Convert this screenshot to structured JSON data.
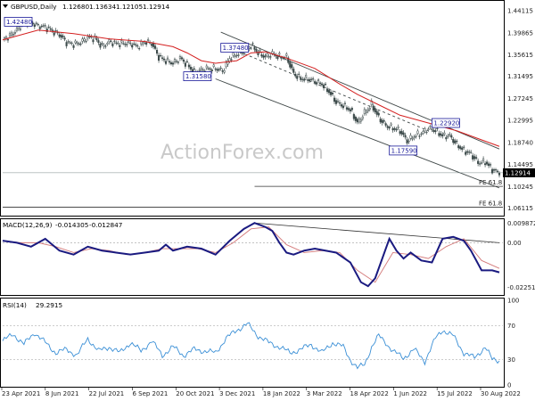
{
  "watermark": "ActionForex.com",
  "chart_data": [
    {
      "type": "candlestick",
      "title": "GBPUSD,Daily",
      "ohlc_readout": [
        "1.12680",
        "1.13634",
        "1.12105",
        "1.12914"
      ],
      "last_price": "1.12914",
      "y_ticks": [
        "1.44115",
        "1.39865",
        "1.35615",
        "1.31495",
        "1.27245",
        "1.22995",
        "1.18740",
        "1.14495",
        "1.10245",
        "1.06115"
      ],
      "ylim": [
        1.05,
        1.455
      ],
      "x_ticks": [
        "23 Apr 2021",
        "8 Jun 2021",
        "22 Jul 2021",
        "6 Sep 2021",
        "20 Oct 2021",
        "3 Dec 2021",
        "18 Jan 2022",
        "3 Mar 2022",
        "18 Apr 2022",
        "1 Jun 2022",
        "15 Jul 2022",
        "30 Aug 2022"
      ],
      "close_path": [
        [
          0,
          1.385
        ],
        [
          4,
          1.393
        ],
        [
          8,
          1.405
        ],
        [
          12,
          1.42
        ],
        [
          16,
          1.418
        ],
        [
          20,
          1.412
        ],
        [
          24,
          1.41
        ],
        [
          28,
          1.402
        ],
        [
          32,
          1.395
        ],
        [
          36,
          1.38
        ],
        [
          40,
          1.377
        ],
        [
          44,
          1.38
        ],
        [
          48,
          1.39
        ],
        [
          52,
          1.388
        ],
        [
          56,
          1.372
        ],
        [
          60,
          1.382
        ],
        [
          64,
          1.378
        ],
        [
          68,
          1.378
        ],
        [
          72,
          1.378
        ],
        [
          76,
          1.372
        ],
        [
          80,
          1.382
        ],
        [
          84,
          1.378
        ],
        [
          88,
          1.352
        ],
        [
          92,
          1.345
        ],
        [
          96,
          1.34
        ],
        [
          100,
          1.35
        ],
        [
          104,
          1.337
        ],
        [
          108,
          1.323
        ],
        [
          112,
          1.327
        ],
        [
          116,
          1.33
        ],
        [
          120,
          1.33
        ],
        [
          124,
          1.325
        ],
        [
          128,
          1.35
        ],
        [
          132,
          1.357
        ],
        [
          136,
          1.363
        ],
        [
          140,
          1.375
        ],
        [
          144,
          1.36
        ],
        [
          148,
          1.352
        ],
        [
          152,
          1.358
        ],
        [
          156,
          1.352
        ],
        [
          160,
          1.352
        ],
        [
          164,
          1.32
        ],
        [
          168,
          1.31
        ],
        [
          172,
          1.31
        ],
        [
          176,
          1.305
        ],
        [
          180,
          1.3
        ],
        [
          184,
          1.285
        ],
        [
          188,
          1.265
        ],
        [
          192,
          1.258
        ],
        [
          196,
          1.25
        ],
        [
          200,
          1.225
        ],
        [
          204,
          1.245
        ],
        [
          208,
          1.26
        ],
        [
          212,
          1.235
        ],
        [
          216,
          1.22
        ],
        [
          220,
          1.215
        ],
        [
          224,
          1.21
        ],
        [
          228,
          1.19
        ],
        [
          232,
          1.2
        ],
        [
          236,
          1.205
        ],
        [
          240,
          1.215
        ],
        [
          244,
          1.21
        ],
        [
          248,
          1.2
        ],
        [
          252,
          1.2
        ],
        [
          256,
          1.183
        ],
        [
          260,
          1.172
        ],
        [
          264,
          1.165
        ],
        [
          268,
          1.148
        ],
        [
          272,
          1.15
        ],
        [
          276,
          1.135
        ],
        [
          280,
          1.129
        ]
      ],
      "ma_path": [
        [
          0,
          1.385
        ],
        [
          20,
          1.404
        ],
        [
          40,
          1.397
        ],
        [
          60,
          1.387
        ],
        [
          80,
          1.382
        ],
        [
          96,
          1.372
        ],
        [
          104,
          1.36
        ],
        [
          112,
          1.345
        ],
        [
          120,
          1.34
        ],
        [
          132,
          1.345
        ],
        [
          140,
          1.36
        ],
        [
          148,
          1.362
        ],
        [
          160,
          1.35
        ],
        [
          176,
          1.33
        ],
        [
          190,
          1.3
        ],
        [
          200,
          1.28
        ],
        [
          212,
          1.26
        ],
        [
          224,
          1.24
        ],
        [
          240,
          1.225
        ],
        [
          256,
          1.21
        ],
        [
          268,
          1.195
        ],
        [
          280,
          1.18
        ]
      ],
      "labels": [
        {
          "text": "1.42480",
          "at": [
            1,
            1.42
          ]
        },
        {
          "text": "1.37480",
          "at": [
            123,
            1.37
          ]
        },
        {
          "text": "1.31580",
          "at": [
            102,
            1.315
          ]
        },
        {
          "text": "1.22920",
          "at": [
            242,
            1.225
          ]
        },
        {
          "text": "1.17590",
          "at": [
            218,
            1.172
          ]
        }
      ],
      "fib_levels": [
        {
          "text": "FE 61.8",
          "value": 1.103,
          "x_start": 142
        },
        {
          "text": "FE 61.8",
          "value": 1.063,
          "x_start": 0
        }
      ],
      "channel_lines": [
        {
          "from": [
            123,
            1.4
          ],
          "to": [
            280,
            1.175
          ]
        },
        {
          "from": [
            120,
            1.31
          ],
          "to": [
            280,
            1.1
          ]
        }
      ],
      "dashed_line": {
        "from": [
          128,
          1.37
        ],
        "to": [
          240,
          1.21
        ]
      }
    },
    {
      "type": "line",
      "title": "MACD(12,26,9)",
      "readout": [
        "-0.014305",
        "-0.012847"
      ],
      "y_ticks": [
        "0.009872",
        "0.00",
        "-0.022516"
      ],
      "ylim": [
        -0.026,
        0.011
      ],
      "macd": [
        [
          0,
          0.001
        ],
        [
          8,
          0.0
        ],
        [
          16,
          -0.002
        ],
        [
          24,
          0.002
        ],
        [
          32,
          -0.004
        ],
        [
          40,
          -0.006
        ],
        [
          48,
          -0.002
        ],
        [
          56,
          -0.004
        ],
        [
          64,
          -0.005
        ],
        [
          72,
          -0.006
        ],
        [
          80,
          -0.005
        ],
        [
          88,
          -0.004
        ],
        [
          92,
          -0.001
        ],
        [
          96,
          -0.004
        ],
        [
          104,
          -0.002
        ],
        [
          112,
          -0.003
        ],
        [
          120,
          -0.006
        ],
        [
          128,
          0.001
        ],
        [
          136,
          0.007
        ],
        [
          142,
          0.01
        ],
        [
          148,
          0.008
        ],
        [
          152,
          0.006
        ],
        [
          156,
          0.0
        ],
        [
          160,
          -0.005
        ],
        [
          164,
          -0.006
        ],
        [
          170,
          -0.004
        ],
        [
          176,
          -0.003
        ],
        [
          182,
          -0.004
        ],
        [
          188,
          -0.005
        ],
        [
          196,
          -0.01
        ],
        [
          202,
          -0.02
        ],
        [
          206,
          -0.022
        ],
        [
          210,
          -0.018
        ],
        [
          214,
          -0.008
        ],
        [
          218,
          0.002
        ],
        [
          222,
          -0.004
        ],
        [
          226,
          -0.008
        ],
        [
          230,
          -0.005
        ],
        [
          236,
          -0.009
        ],
        [
          242,
          -0.01
        ],
        [
          248,
          0.002
        ],
        [
          254,
          0.003
        ],
        [
          260,
          0.001
        ],
        [
          264,
          -0.004
        ],
        [
          270,
          -0.014
        ],
        [
          276,
          -0.014
        ],
        [
          280,
          -0.015
        ]
      ],
      "signal": [
        [
          0,
          0.001
        ],
        [
          10,
          0.0
        ],
        [
          20,
          0.0
        ],
        [
          30,
          -0.002
        ],
        [
          40,
          -0.005
        ],
        [
          50,
          -0.003
        ],
        [
          60,
          -0.004
        ],
        [
          70,
          -0.006
        ],
        [
          80,
          -0.005
        ],
        [
          90,
          -0.003
        ],
        [
          100,
          -0.003
        ],
        [
          110,
          -0.003
        ],
        [
          120,
          -0.005
        ],
        [
          130,
          0.0
        ],
        [
          140,
          0.007
        ],
        [
          150,
          0.008
        ],
        [
          160,
          -0.001
        ],
        [
          170,
          -0.005
        ],
        [
          180,
          -0.004
        ],
        [
          190,
          -0.005
        ],
        [
          200,
          -0.014
        ],
        [
          210,
          -0.02
        ],
        [
          220,
          -0.005
        ],
        [
          230,
          -0.006
        ],
        [
          240,
          -0.008
        ],
        [
          250,
          -0.002
        ],
        [
          260,
          0.002
        ],
        [
          270,
          -0.009
        ],
        [
          280,
          -0.013
        ]
      ],
      "divergence_line": {
        "from": [
          142,
          0.01
        ],
        "to": [
          280,
          0.0
        ]
      }
    },
    {
      "type": "line",
      "title": "RSI(14)",
      "readout": "29.2915",
      "y_ticks": [
        "100",
        "70",
        "30",
        "0"
      ],
      "ylim": [
        0,
        100
      ],
      "values": [
        [
          0,
          52
        ],
        [
          6,
          60
        ],
        [
          12,
          48
        ],
        [
          18,
          62
        ],
        [
          24,
          50
        ],
        [
          30,
          38
        ],
        [
          36,
          42
        ],
        [
          42,
          35
        ],
        [
          48,
          55
        ],
        [
          54,
          40
        ],
        [
          60,
          45
        ],
        [
          66,
          38
        ],
        [
          72,
          50
        ],
        [
          78,
          40
        ],
        [
          84,
          52
        ],
        [
          90,
          35
        ],
        [
          96,
          45
        ],
        [
          102,
          35
        ],
        [
          108,
          42
        ],
        [
          114,
          40
        ],
        [
          120,
          38
        ],
        [
          126,
          55
        ],
        [
          132,
          65
        ],
        [
          138,
          72
        ],
        [
          144,
          58
        ],
        [
          150,
          50
        ],
        [
          156,
          45
        ],
        [
          162,
          38
        ],
        [
          168,
          42
        ],
        [
          174,
          48
        ],
        [
          180,
          38
        ],
        [
          186,
          50
        ],
        [
          192,
          45
        ],
        [
          196,
          30
        ],
        [
          200,
          20
        ],
        [
          204,
          24
        ],
        [
          208,
          45
        ],
        [
          212,
          58
        ],
        [
          216,
          50
        ],
        [
          220,
          40
        ],
        [
          226,
          32
        ],
        [
          232,
          42
        ],
        [
          238,
          28
        ],
        [
          244,
          55
        ],
        [
          248,
          65
        ],
        [
          254,
          58
        ],
        [
          260,
          38
        ],
        [
          266,
          32
        ],
        [
          272,
          45
        ],
        [
          276,
          30
        ],
        [
          280,
          29
        ]
      ]
    }
  ]
}
